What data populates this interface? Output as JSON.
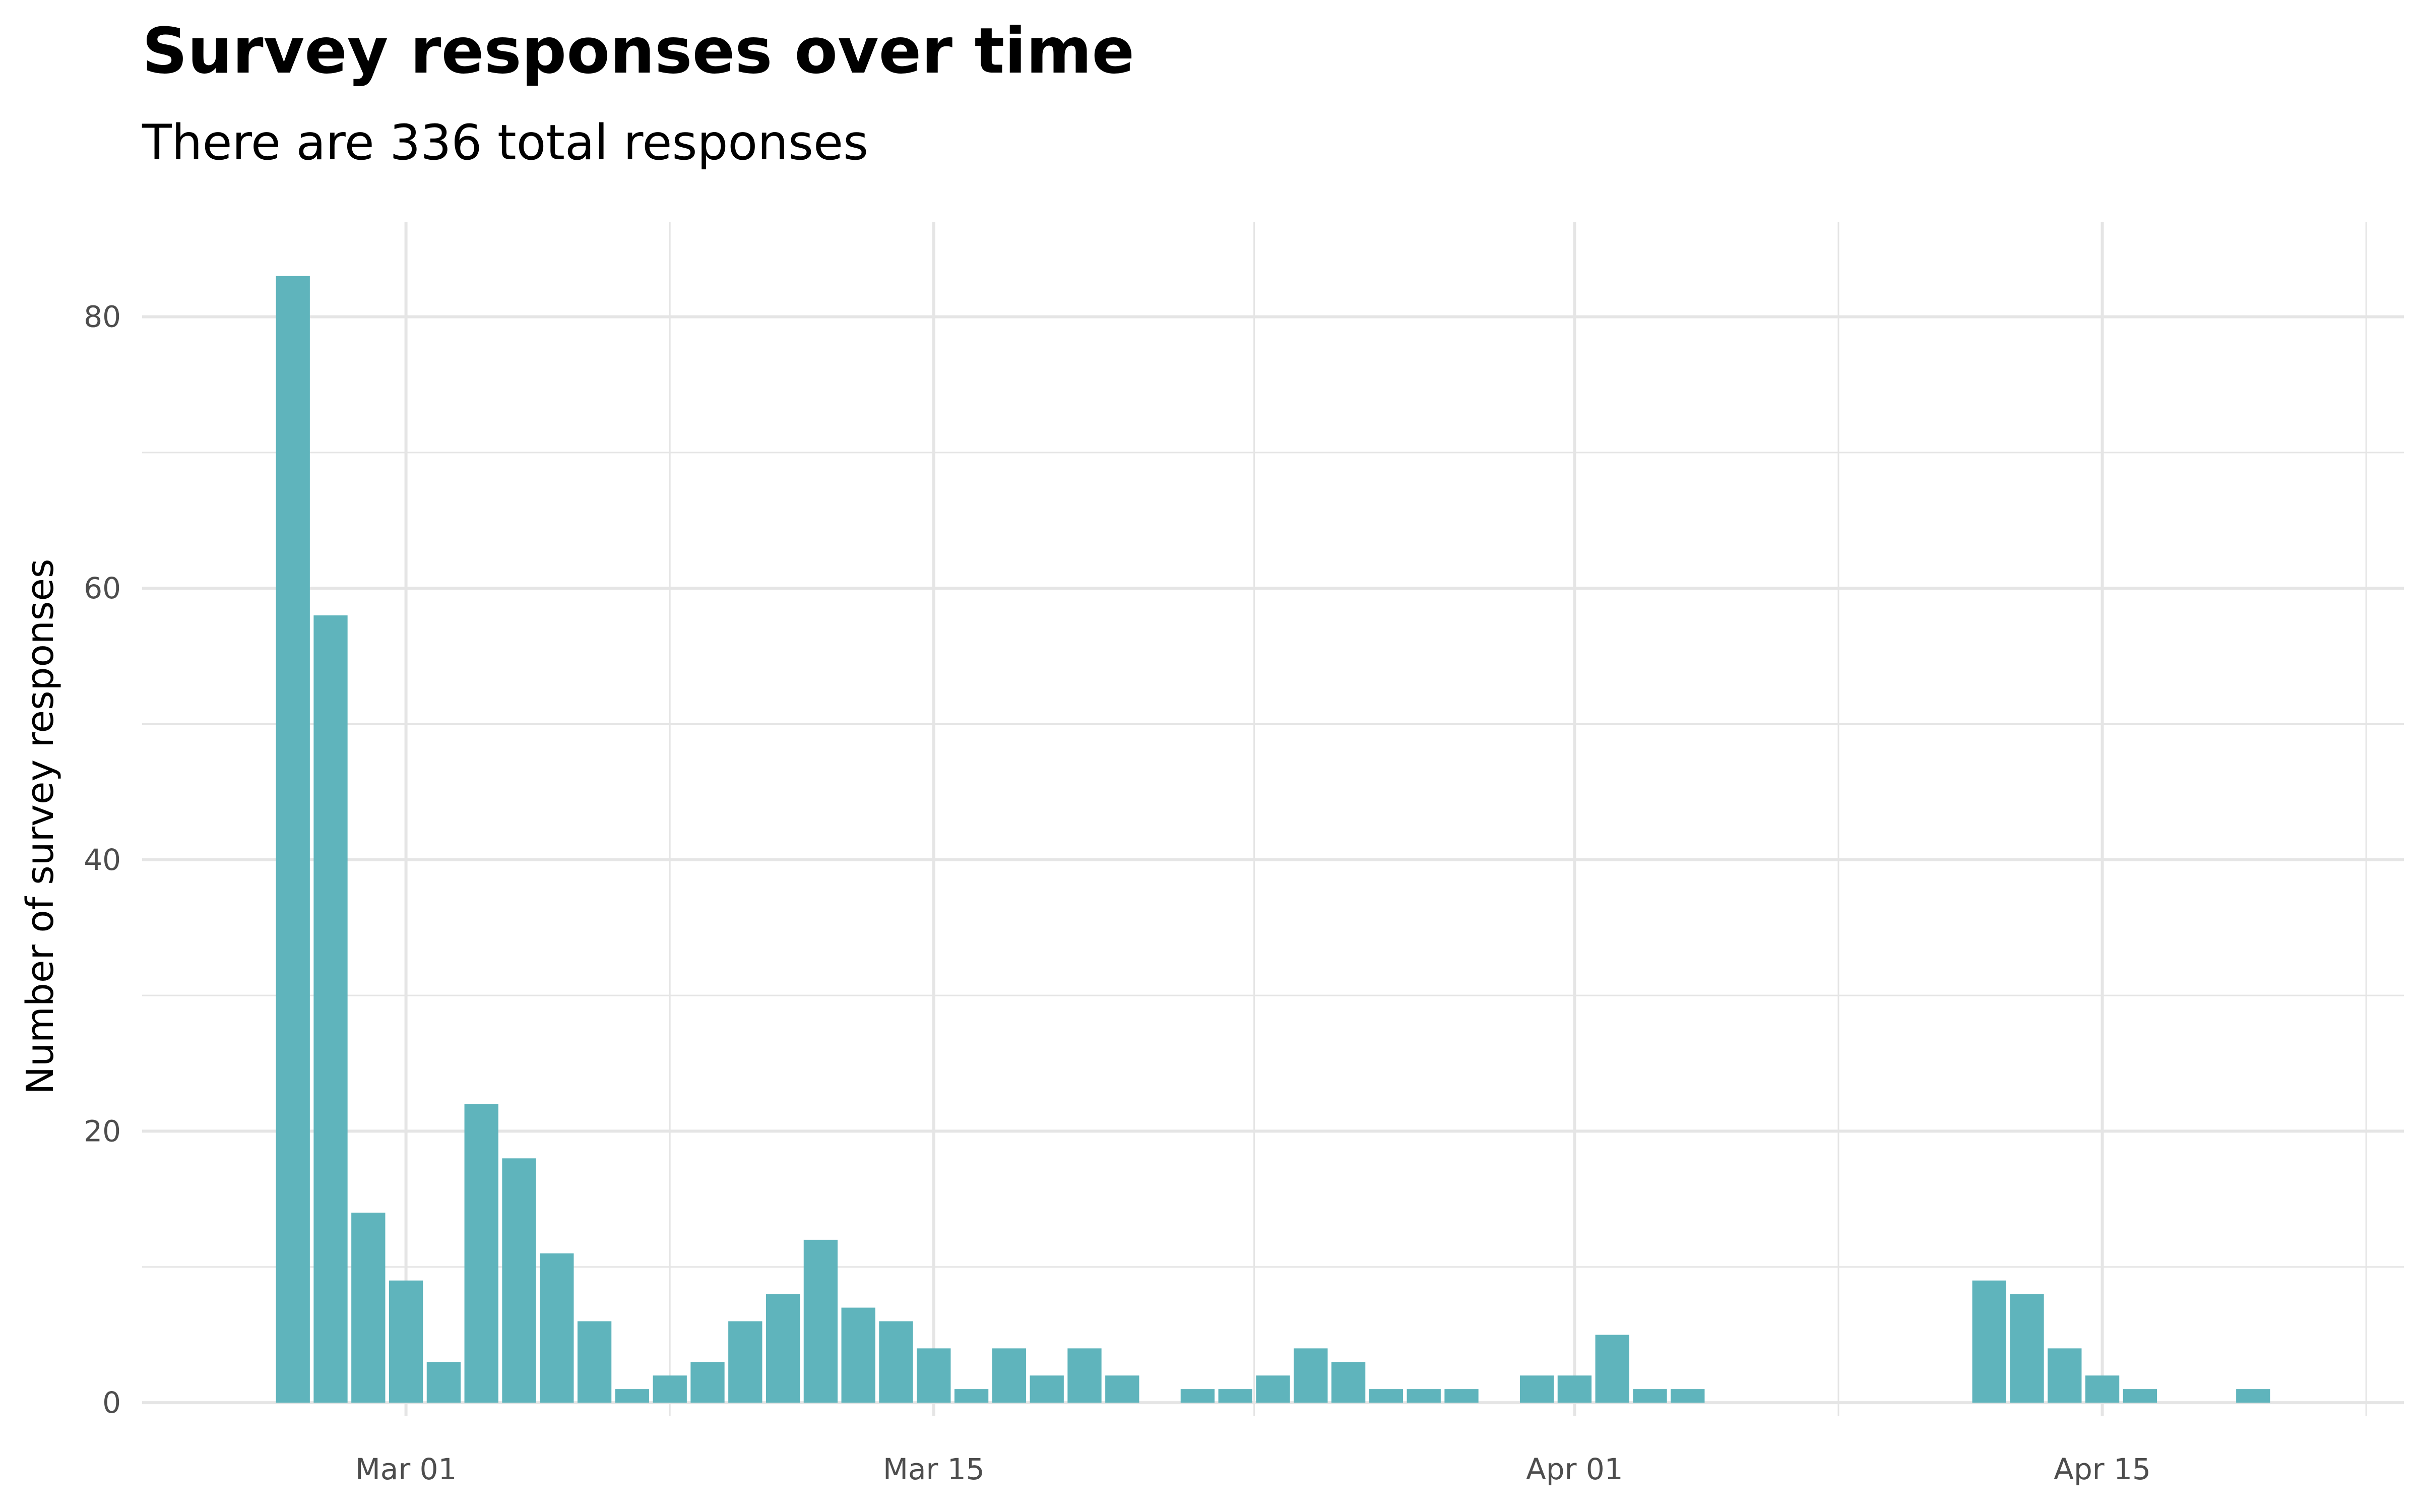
{
  "chart_data": {
    "type": "bar",
    "title": "Survey responses over time",
    "subtitle": "There are 336 total responses",
    "xlabel": "",
    "ylabel": "Number of survey responses",
    "x": [
      "2020-02-27",
      "2020-02-28",
      "2020-02-29",
      "2020-03-01",
      "2020-03-02",
      "2020-03-03",
      "2020-03-04",
      "2020-03-05",
      "2020-03-06",
      "2020-03-07",
      "2020-03-08",
      "2020-03-09",
      "2020-03-10",
      "2020-03-11",
      "2020-03-12",
      "2020-03-13",
      "2020-03-14",
      "2020-03-15",
      "2020-03-16",
      "2020-03-17",
      "2020-03-18",
      "2020-03-19",
      "2020-03-20",
      "2020-03-22",
      "2020-03-23",
      "2020-03-24",
      "2020-03-25",
      "2020-03-26",
      "2020-03-27",
      "2020-03-28",
      "2020-03-29",
      "2020-03-31",
      "2020-04-01",
      "2020-04-02",
      "2020-04-03",
      "2020-04-04",
      "2020-04-12",
      "2020-04-13",
      "2020-04-14",
      "2020-04-15",
      "2020-04-16",
      "2020-04-19"
    ],
    "values": [
      83,
      58,
      14,
      9,
      3,
      22,
      18,
      11,
      6,
      1,
      2,
      3,
      6,
      8,
      12,
      7,
      6,
      4,
      1,
      4,
      2,
      4,
      2,
      1,
      1,
      2,
      4,
      3,
      1,
      1,
      1,
      2,
      2,
      5,
      1,
      1,
      9,
      8,
      4,
      2,
      1,
      1
    ],
    "xlim": [
      "2020-02-23",
      "2020-04-23"
    ],
    "ylim": [
      -1,
      87
    ],
    "x_ticks": [
      "2020-03-01",
      "2020-03-15",
      "2020-04-01",
      "2020-04-15"
    ],
    "x_tick_labels": [
      "Mar 01",
      "Mar 15",
      "Apr 01",
      "Apr 15"
    ],
    "y_ticks": [
      0,
      20,
      40,
      60,
      80
    ],
    "y_tick_labels": [
      "0",
      "20",
      "40",
      "60",
      "80"
    ],
    "grid": true,
    "bar_color": "#5fb4bc",
    "grid_color": "#e5e5e5"
  }
}
